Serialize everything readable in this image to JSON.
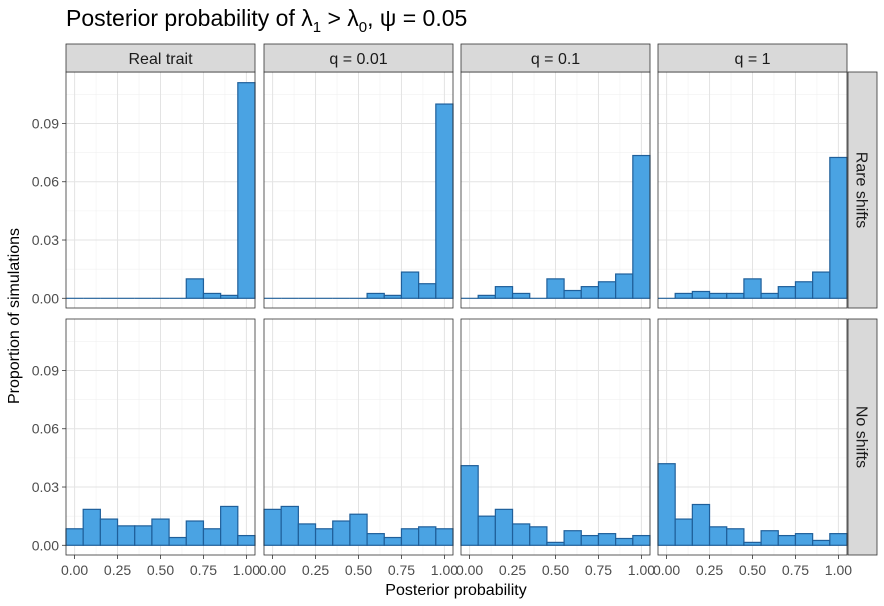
{
  "chart_data": {
    "type": "bar",
    "title": {
      "prefix": "Posterior probability of λ",
      "sub1": "1",
      "middle": " > λ",
      "sub2": "0",
      "suffix": ", ψ = 0.05"
    },
    "xlabel": "Posterior probability",
    "ylabel": "Proportion of simulations",
    "xlim": [
      -0.05,
      1.05
    ],
    "ylim": [
      -0.005,
      0.1165
    ],
    "x_ticks": [
      0.0,
      0.25,
      0.5,
      0.75,
      1.0
    ],
    "x_tick_labels": [
      "0.00",
      "0.25",
      "0.50",
      "0.75",
      "1.00"
    ],
    "y_ticks": [
      0.0,
      0.03,
      0.06,
      0.09
    ],
    "y_tick_labels": [
      "0.00",
      "0.03",
      "0.06",
      "0.09"
    ],
    "bin_centers": [
      0.0,
      0.1,
      0.2,
      0.3,
      0.4,
      0.5,
      0.6,
      0.7,
      0.8,
      0.9,
      1.0
    ],
    "bin_width": 0.1,
    "column_labels": [
      "Real trait",
      "q = 0.01",
      "q = 0.1",
      "q = 1"
    ],
    "row_labels": [
      "Rare shifts",
      "No shifts"
    ],
    "grid": true,
    "bar_fill": "#4aa3e3",
    "bar_stroke": "#1f5f9a",
    "strip_fill": "#d9d9d9",
    "panels": [
      [
        [
          0,
          0,
          0,
          0,
          0,
          0,
          0,
          0.01,
          0.0025,
          0.0015,
          0.111
        ],
        [
          0,
          0,
          0,
          0,
          0,
          0,
          0.0025,
          0.0015,
          0.0135,
          0.0075,
          0.1
        ],
        [
          0,
          0.0015,
          0.006,
          0.0025,
          0,
          0.01,
          0.004,
          0.006,
          0.0085,
          0.0125,
          0.0735
        ],
        [
          0,
          0.0025,
          0.0035,
          0.0025,
          0.0025,
          0.01,
          0.0025,
          0.006,
          0.0085,
          0.0135,
          0.0725
        ]
      ],
      [
        [
          0.0085,
          0.0185,
          0.0135,
          0.01,
          0.01,
          0.0135,
          0.004,
          0.0125,
          0.0085,
          0.02,
          0.005
        ],
        [
          0.0185,
          0.02,
          0.011,
          0.0085,
          0.0125,
          0.016,
          0.006,
          0.004,
          0.0085,
          0.0095,
          0.0085
        ],
        [
          0.041,
          0.015,
          0.0185,
          0.011,
          0.0095,
          0.0015,
          0.0075,
          0.005,
          0.006,
          0.0035,
          0.005
        ],
        [
          0.042,
          0.0135,
          0.021,
          0.0095,
          0.0085,
          0.0015,
          0.0075,
          0.005,
          0.006,
          0.0025,
          0.006
        ]
      ]
    ]
  }
}
